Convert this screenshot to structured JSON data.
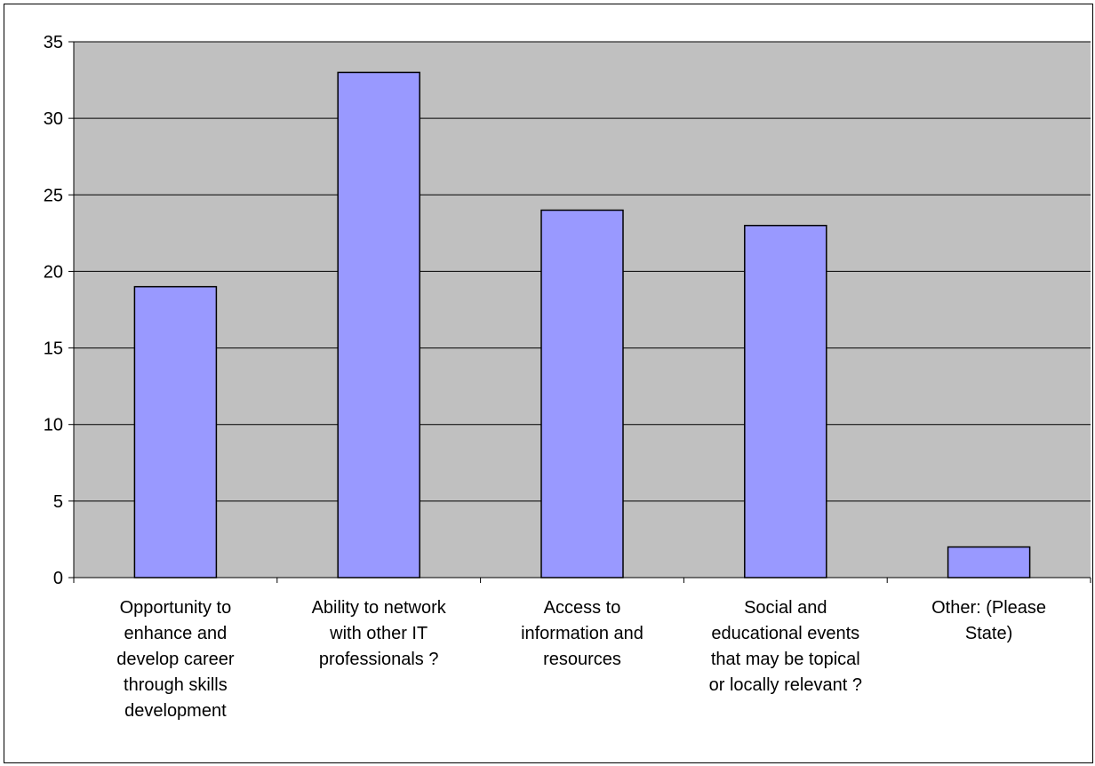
{
  "chart_data": {
    "type": "bar",
    "categories": [
      "Opportunity to enhance and develop career through skills development",
      "Ability to network with other IT professionals  ?",
      "Access to information and resources",
      "Social and educational events that may be topical or locally relevant ?",
      "Other: (Please State)"
    ],
    "category_lines": [
      [
        "Opportunity to",
        "enhance and",
        "develop career",
        "through skills",
        "development"
      ],
      [
        "Ability to network",
        "with other IT",
        "professionals  ?"
      ],
      [
        "Access to",
        "information and",
        "resources"
      ],
      [
        "Social and",
        "educational events",
        "that may be topical",
        "or locally relevant ?"
      ],
      [
        "Other: (Please",
        "State)"
      ]
    ],
    "values": [
      19,
      33,
      24,
      23,
      2
    ],
    "ylim": [
      0,
      35
    ],
    "yticks": [
      "0",
      "5",
      "10",
      "15",
      "20",
      "25",
      "30",
      "35"
    ],
    "grid": true,
    "legend": "none",
    "colors": {
      "bar_fill": "#9999ff",
      "bar_stroke": "#000000",
      "plot_background": "#c0c0c0",
      "gridline": "#000000"
    }
  }
}
